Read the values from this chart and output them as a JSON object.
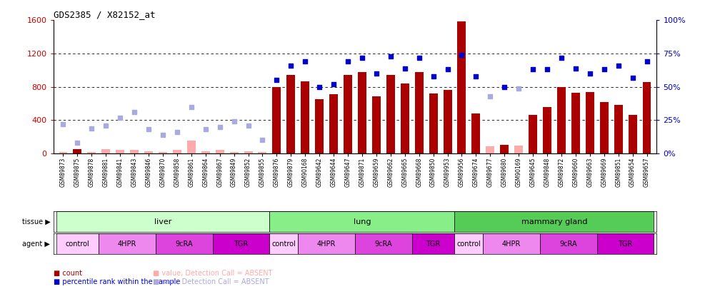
{
  "title": "GDS2385 / X82152_at",
  "samples": [
    "GSM89873",
    "GSM89875",
    "GSM89878",
    "GSM89881",
    "GSM89841",
    "GSM89843",
    "GSM89846",
    "GSM89870",
    "GSM89858",
    "GSM89861",
    "GSM89864",
    "GSM89867",
    "GSM89849",
    "GSM89852",
    "GSM89855",
    "GSM89876",
    "GSM89879",
    "GSM90168",
    "GSM89642",
    "GSM89644",
    "GSM89647",
    "GSM89871",
    "GSM89659",
    "GSM89662",
    "GSM89665",
    "GSM89668",
    "GSM89850",
    "GSM89953",
    "GSM89956",
    "GSM89674",
    "GSM89677",
    "GSM89680",
    "GSM90169",
    "GSM89645",
    "GSM89848",
    "GSM89872",
    "GSM89660",
    "GSM89663",
    "GSM89669",
    "GSM89851",
    "GSM89654",
    "GSM89657"
  ],
  "count_values": [
    18,
    55,
    18,
    55,
    40,
    45,
    25,
    18,
    40,
    155,
    25,
    40,
    18,
    25,
    15,
    800,
    940,
    870,
    650,
    710,
    940,
    980,
    690,
    940,
    840,
    980,
    720,
    760,
    1590,
    480,
    85,
    105,
    95,
    465,
    560,
    800,
    730,
    740,
    620,
    580,
    460,
    860
  ],
  "percentile_values": [
    22,
    8,
    19,
    21,
    27,
    31,
    18,
    14,
    16,
    35,
    18,
    20,
    24,
    21,
    10,
    55,
    66,
    69,
    50,
    52,
    69,
    72,
    60,
    73,
    64,
    72,
    58,
    63,
    74,
    58,
    43,
    50,
    49,
    63,
    63,
    72,
    64,
    60,
    63,
    66,
    57,
    69
  ],
  "absent_count": [
    1,
    0,
    1,
    1,
    1,
    1,
    1,
    1,
    1,
    1,
    1,
    1,
    1,
    1,
    1,
    0,
    0,
    0,
    0,
    0,
    0,
    0,
    0,
    0,
    0,
    0,
    0,
    0,
    0,
    0,
    1,
    0,
    1,
    0,
    0,
    0,
    0,
    0,
    0,
    0,
    0,
    0
  ],
  "absent_percentile": [
    1,
    1,
    1,
    1,
    1,
    1,
    1,
    1,
    1,
    1,
    1,
    1,
    1,
    1,
    1,
    0,
    0,
    0,
    0,
    0,
    0,
    0,
    0,
    0,
    0,
    0,
    0,
    0,
    0,
    0,
    1,
    0,
    1,
    0,
    0,
    0,
    0,
    0,
    0,
    0,
    0,
    0
  ],
  "ylim_left": [
    0,
    1600
  ],
  "ylim_right": [
    0,
    100
  ],
  "yticks_left": [
    0,
    400,
    800,
    1200,
    1600
  ],
  "yticks_right": [
    0,
    25,
    50,
    75,
    100
  ],
  "tissue_groups": [
    {
      "label": "liver",
      "start": 0,
      "end": 15,
      "color": "#ccffcc"
    },
    {
      "label": "lung",
      "start": 15,
      "end": 28,
      "color": "#88ee88"
    },
    {
      "label": "mammary gland",
      "start": 28,
      "end": 42,
      "color": "#55cc55"
    }
  ],
  "agent_groups": [
    {
      "label": "control",
      "start": 0,
      "end": 3,
      "color": "#ffccff"
    },
    {
      "label": "4HPR",
      "start": 3,
      "end": 7,
      "color": "#ee88ee"
    },
    {
      "label": "9cRA",
      "start": 7,
      "end": 11,
      "color": "#dd44dd"
    },
    {
      "label": "TGR",
      "start": 11,
      "end": 15,
      "color": "#cc00cc"
    },
    {
      "label": "control",
      "start": 15,
      "end": 17,
      "color": "#ffccff"
    },
    {
      "label": "4HPR",
      "start": 17,
      "end": 21,
      "color": "#ee88ee"
    },
    {
      "label": "9cRA",
      "start": 21,
      "end": 25,
      "color": "#dd44dd"
    },
    {
      "label": "TGR",
      "start": 25,
      "end": 28,
      "color": "#cc00cc"
    },
    {
      "label": "control",
      "start": 28,
      "end": 30,
      "color": "#ffccff"
    },
    {
      "label": "4HPR",
      "start": 30,
      "end": 34,
      "color": "#ee88ee"
    },
    {
      "label": "9cRA",
      "start": 34,
      "end": 38,
      "color": "#dd44dd"
    },
    {
      "label": "TGR",
      "start": 38,
      "end": 42,
      "color": "#cc00cc"
    }
  ],
  "bar_color": "#aa0000",
  "bar_absent_color": "#ffaaaa",
  "dot_color": "#0000cc",
  "dot_absent_color": "#aaaadd",
  "left_axis_color": "#cc0000",
  "right_axis_color": "#0000cc",
  "bg_color": "#ffffff",
  "grid_color": "#000000"
}
